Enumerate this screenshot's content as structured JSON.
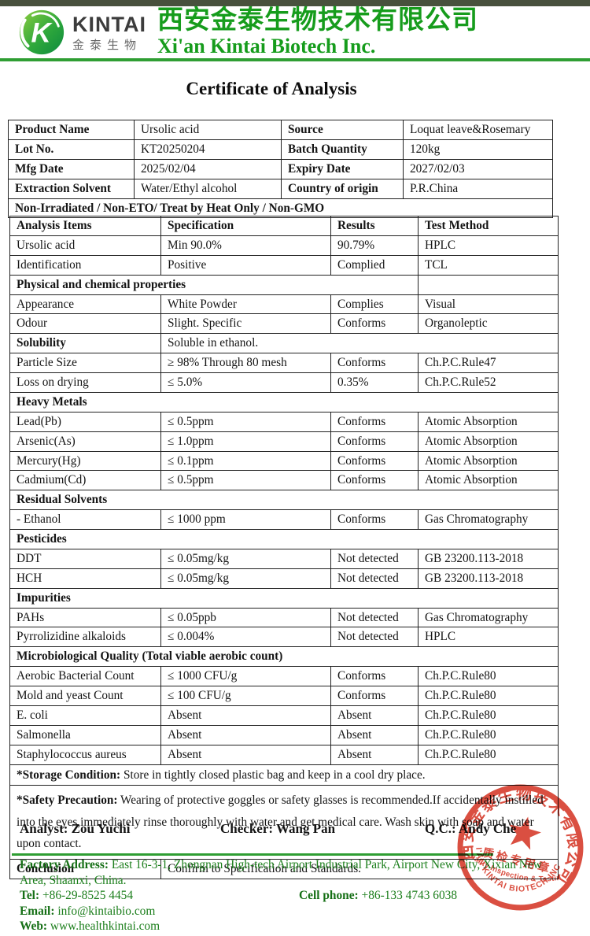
{
  "header": {
    "logo_brand": "KINTAI",
    "logo_brand_cn": "金泰生物",
    "company_cn": "西安金泰生物技术有限公司",
    "company_en": "Xi'an Kintai Biotech Inc.",
    "accent_green": "#169c1c"
  },
  "title": "Certificate of Analysis",
  "info_table": {
    "rows": [
      [
        "Product Name",
        "Ursolic acid",
        "Source",
        "Loquat leave&Rosemary"
      ],
      [
        "Lot No.",
        "KT20250204",
        "Batch Quantity",
        "120kg"
      ],
      [
        "Mfg Date",
        "2025/02/04",
        "Expiry Date",
        "2027/02/03"
      ],
      [
        "Extraction Solvent",
        "Water/Ethyl alcohol",
        "Country of origin",
        "P.R.China"
      ]
    ],
    "banner": "Non-Irradiated / Non-ETO/ Treat by Heat Only / Non-GMO"
  },
  "analysis_table": {
    "headers": [
      "Analysis Items",
      "Specification",
      "Results",
      "Test Method"
    ],
    "rows": [
      {
        "t": "d",
        "c": [
          "Ursolic acid",
          "Min 90.0%",
          "90.79%",
          "HPLC"
        ]
      },
      {
        "t": "d",
        "c": [
          "Identification",
          "Positive",
          "Complied",
          "TCL"
        ]
      },
      {
        "t": "s3",
        "c": [
          "Physical and chemical properties"
        ]
      },
      {
        "t": "d",
        "c": [
          "Appearance",
          "White Powder",
          "Complies",
          "Visual"
        ]
      },
      {
        "t": "d",
        "c": [
          "Odour",
          "Slight. Specific",
          "Conforms",
          "Organoleptic"
        ]
      },
      {
        "t": "m",
        "c": [
          "Solubility",
          "Soluble in ethanol."
        ]
      },
      {
        "t": "d",
        "c": [
          "Particle Size",
          "≥ 98% Through 80 mesh",
          "Conforms",
          "Ch.P.C.Rule47"
        ]
      },
      {
        "t": "d",
        "c": [
          "Loss on drying",
          "≤ 5.0%",
          "0.35%",
          "Ch.P.C.Rule52"
        ]
      },
      {
        "t": "s4",
        "c": [
          "Heavy Metals"
        ]
      },
      {
        "t": "d",
        "c": [
          "Lead(Pb)",
          "≤ 0.5ppm",
          "Conforms",
          "Atomic Absorption"
        ]
      },
      {
        "t": "d",
        "c": [
          "Arsenic(As)",
          "≤ 1.0ppm",
          "Conforms",
          "Atomic Absorption"
        ]
      },
      {
        "t": "d",
        "c": [
          "Mercury(Hg)",
          "≤ 0.1ppm",
          "Conforms",
          "Atomic Absorption"
        ]
      },
      {
        "t": "d",
        "c": [
          "Cadmium(Cd)",
          "≤ 0.5ppm",
          "Conforms",
          "Atomic Absorption"
        ]
      },
      {
        "t": "s4",
        "c": [
          "Residual Solvents"
        ]
      },
      {
        "t": "d",
        "c": [
          "- Ethanol",
          "≤ 1000 ppm",
          "Conforms",
          "Gas Chromatography"
        ]
      },
      {
        "t": "s4",
        "c": [
          "Pesticides"
        ]
      },
      {
        "t": "d",
        "c": [
          "DDT",
          "≤ 0.05mg/kg",
          "Not detected",
          "GB 23200.113-2018"
        ]
      },
      {
        "t": "d",
        "c": [
          "HCH",
          "≤ 0.05mg/kg",
          "Not detected",
          "GB 23200.113-2018"
        ]
      },
      {
        "t": "s4",
        "c": [
          "Impurities"
        ]
      },
      {
        "t": "d",
        "c": [
          "PAHs",
          "≤ 0.05ppb",
          "Not detected",
          "Gas Chromatography"
        ]
      },
      {
        "t": "d",
        "c": [
          "Pyrrolizidine alkaloids",
          "≤ 0.004%",
          "Not detected",
          "HPLC"
        ]
      },
      {
        "t": "s4",
        "c": [
          "Microbiological Quality (Total viable aerobic count)"
        ]
      },
      {
        "t": "d",
        "c": [
          "Aerobic Bacterial Count",
          "≤ 1000 CFU/g",
          "Conforms",
          "Ch.P.C.Rule80"
        ]
      },
      {
        "t": "d",
        "c": [
          "Mold and yeast Count",
          "≤ 100 CFU/g",
          "Conforms",
          "Ch.P.C.Rule80"
        ]
      },
      {
        "t": "d",
        "c": [
          "E. coli",
          "Absent",
          "Absent",
          "Ch.P.C.Rule80"
        ]
      },
      {
        "t": "d",
        "c": [
          "Salmonella",
          "Absent",
          "Absent",
          "Ch.P.C.Rule80"
        ]
      },
      {
        "t": "d",
        "c": [
          "Staphylococcus aureus",
          "Absent",
          "Absent",
          "Ch.P.C.Rule80"
        ]
      }
    ]
  },
  "notes": {
    "storage_label": "*Storage Condition:",
    "storage_text": " Store in tightly closed plastic bag and keep in a cool dry place.",
    "safety_label": "*Safety Precaution:",
    "safety_text": " Wearing of protective goggles or safety glasses is recommended.If accidentally instilled into the eyes,immediately rinse thoroughly with water and get medical care. Wash skin with soap and water upon contact.",
    "conclusion_label": "Conclusion",
    "conclusion_text": "Confirm to Specification and Standards."
  },
  "signatures": {
    "analyst": "Analyst: Zou Yuchi",
    "checker": "Checker: Wang Pan",
    "qc": "Q.C.: Andy Che"
  },
  "footer": {
    "factory_label": "Factory Address:",
    "factory_value": " East 16-3-1, Zhongnan High-tech Airport Industrial Park, Airport New City, Xixian New Area, Shaanxi, China.",
    "tel_label": "Tel:",
    "tel_value": " +86-29-8525 4454",
    "cell_label": "Cell phone:",
    "cell_value": " +86-133 4743 6038",
    "email_label": "Email:",
    "email_value": " info@kintaibio.com",
    "web_label": "Web:",
    "web_value": " www.healthkintai.com",
    "text_green": "#1b7e1b"
  },
  "stamp": {
    "ring_cn": "西安金泰生物技术有限公司",
    "ring_en": "XI'AN KINTAI BIOTECH INC.",
    "center_cn": "质检专用章",
    "center_en": "Quality Inspection & Testing",
    "color": "#d63c2c"
  }
}
